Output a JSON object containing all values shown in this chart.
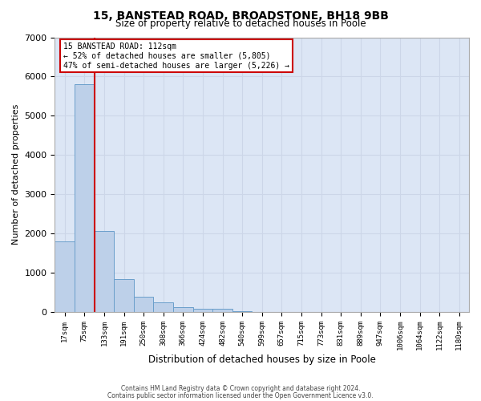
{
  "title": "15, BANSTEAD ROAD, BROADSTONE, BH18 9BB",
  "subtitle": "Size of property relative to detached houses in Poole",
  "xlabel": "Distribution of detached houses by size in Poole",
  "ylabel": "Number of detached properties",
  "bar_labels": [
    "17sqm",
    "75sqm",
    "133sqm",
    "191sqm",
    "250sqm",
    "308sqm",
    "366sqm",
    "424sqm",
    "482sqm",
    "540sqm",
    "599sqm",
    "657sqm",
    "715sqm",
    "773sqm",
    "831sqm",
    "889sqm",
    "947sqm",
    "1006sqm",
    "1064sqm",
    "1122sqm",
    "1180sqm"
  ],
  "bar_values": [
    1800,
    5800,
    2060,
    840,
    380,
    240,
    130,
    90,
    90,
    30,
    0,
    0,
    0,
    0,
    0,
    0,
    0,
    0,
    0,
    0,
    0
  ],
  "bar_color": "#bdd0e9",
  "bar_edge_color": "#6a9fcb",
  "vline_color": "#cc0000",
  "ylim": [
    0,
    7000
  ],
  "yticks": [
    0,
    1000,
    2000,
    3000,
    4000,
    5000,
    6000,
    7000
  ],
  "annotation_title": "15 BANSTEAD ROAD: 112sqm",
  "annotation_line1": "← 52% of detached houses are smaller (5,805)",
  "annotation_line2": "47% of semi-detached houses are larger (5,226) →",
  "annotation_box_color": "#ffffff",
  "annotation_box_edge": "#cc0000",
  "grid_color": "#ccd6e8",
  "background_color": "#dce6f5",
  "footer1": "Contains HM Land Registry data © Crown copyright and database right 2024.",
  "footer2": "Contains public sector information licensed under the Open Government Licence v3.0."
}
